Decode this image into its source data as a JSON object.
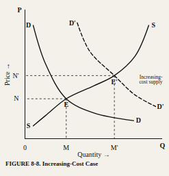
{
  "chart_data": {
    "type": "line",
    "title": "FIGURE 8-8. Increasing-Cost Case",
    "x_label": "Quantity",
    "y_label": "Price",
    "xlim": [
      0,
      100
    ],
    "ylim": [
      0,
      100
    ],
    "xticks": [
      0,
      {
        "value": 30,
        "label": "M"
      },
      {
        "value": 65,
        "label": "M'"
      }
    ],
    "yticks": [
      {
        "value": 31,
        "label": "N"
      },
      {
        "value": 49,
        "label": "N'"
      }
    ],
    "grid": false,
    "series": [
      {
        "name": "D",
        "color": "#111111",
        "line_style": "solid",
        "x": [
          6,
          15,
          30,
          50,
          79
        ],
        "values": [
          88,
          58,
          31,
          20,
          14
        ]
      },
      {
        "name": "D'",
        "color": "#111111",
        "line_style": "dashed",
        "x": [
          38,
          47,
          65,
          80,
          95
        ],
        "values": [
          90,
          68,
          49,
          34,
          25
        ]
      },
      {
        "name": "S",
        "color": "#111111",
        "line_style": "solid",
        "x": [
          6,
          15,
          30,
          50,
          65,
          80,
          90
        ],
        "values": [
          10,
          18,
          31,
          41,
          49,
          64,
          88
        ]
      }
    ],
    "points": [
      {
        "label": "E",
        "x": 30,
        "y": 31
      },
      {
        "label": "E'",
        "x": 65,
        "y": 49
      }
    ],
    "annotations": [
      {
        "text": "P",
        "x": 0,
        "y": 100
      },
      {
        "text": "Q",
        "x": 100,
        "y": 0
      },
      {
        "text": "Increasing-cost supply",
        "x": 100,
        "y": 46
      }
    ]
  }
}
